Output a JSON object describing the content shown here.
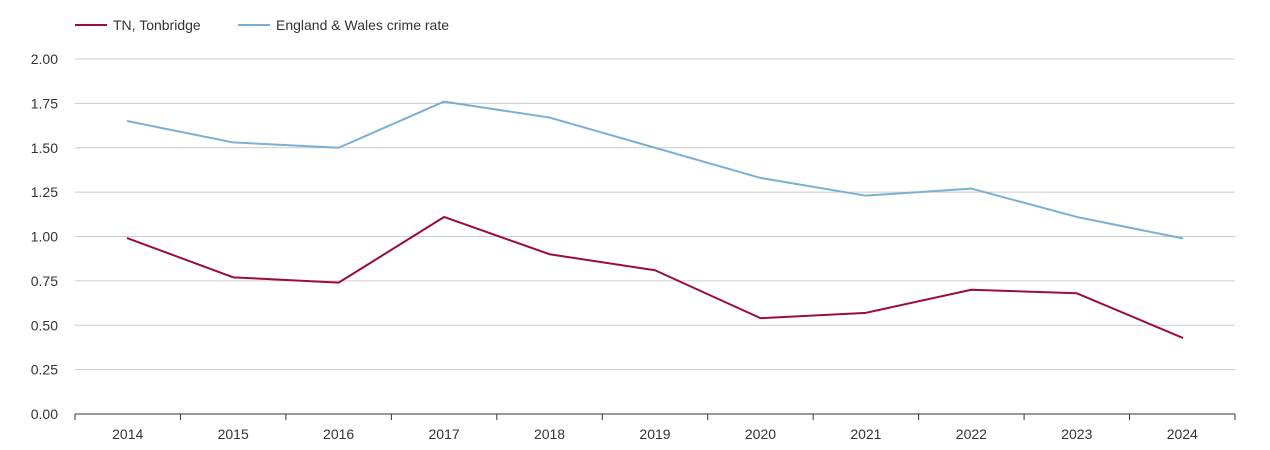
{
  "chart_data": {
    "type": "line",
    "title": "",
    "xlabel": "",
    "ylabel": "",
    "categories": [
      "2014",
      "2015",
      "2016",
      "2017",
      "2018",
      "2019",
      "2020",
      "2021",
      "2022",
      "2023",
      "2024"
    ],
    "ylim": [
      0,
      2
    ],
    "yticks": [
      "0.00",
      "0.25",
      "0.50",
      "0.75",
      "1.00",
      "1.25",
      "1.50",
      "1.75",
      "2.00"
    ],
    "grid": true,
    "legend_position": "top-left",
    "series": [
      {
        "name": "TN, Tonbridge",
        "color": "#9b0d36",
        "values": [
          0.99,
          0.77,
          0.74,
          1.11,
          0.9,
          0.81,
          0.54,
          0.57,
          0.7,
          0.68,
          0.43
        ]
      },
      {
        "name": "England & Wales crime rate",
        "color": "#7ab0d4",
        "values": [
          1.65,
          1.53,
          1.5,
          1.76,
          1.67,
          1.5,
          1.33,
          1.23,
          1.27,
          1.11,
          0.99
        ]
      }
    ]
  }
}
